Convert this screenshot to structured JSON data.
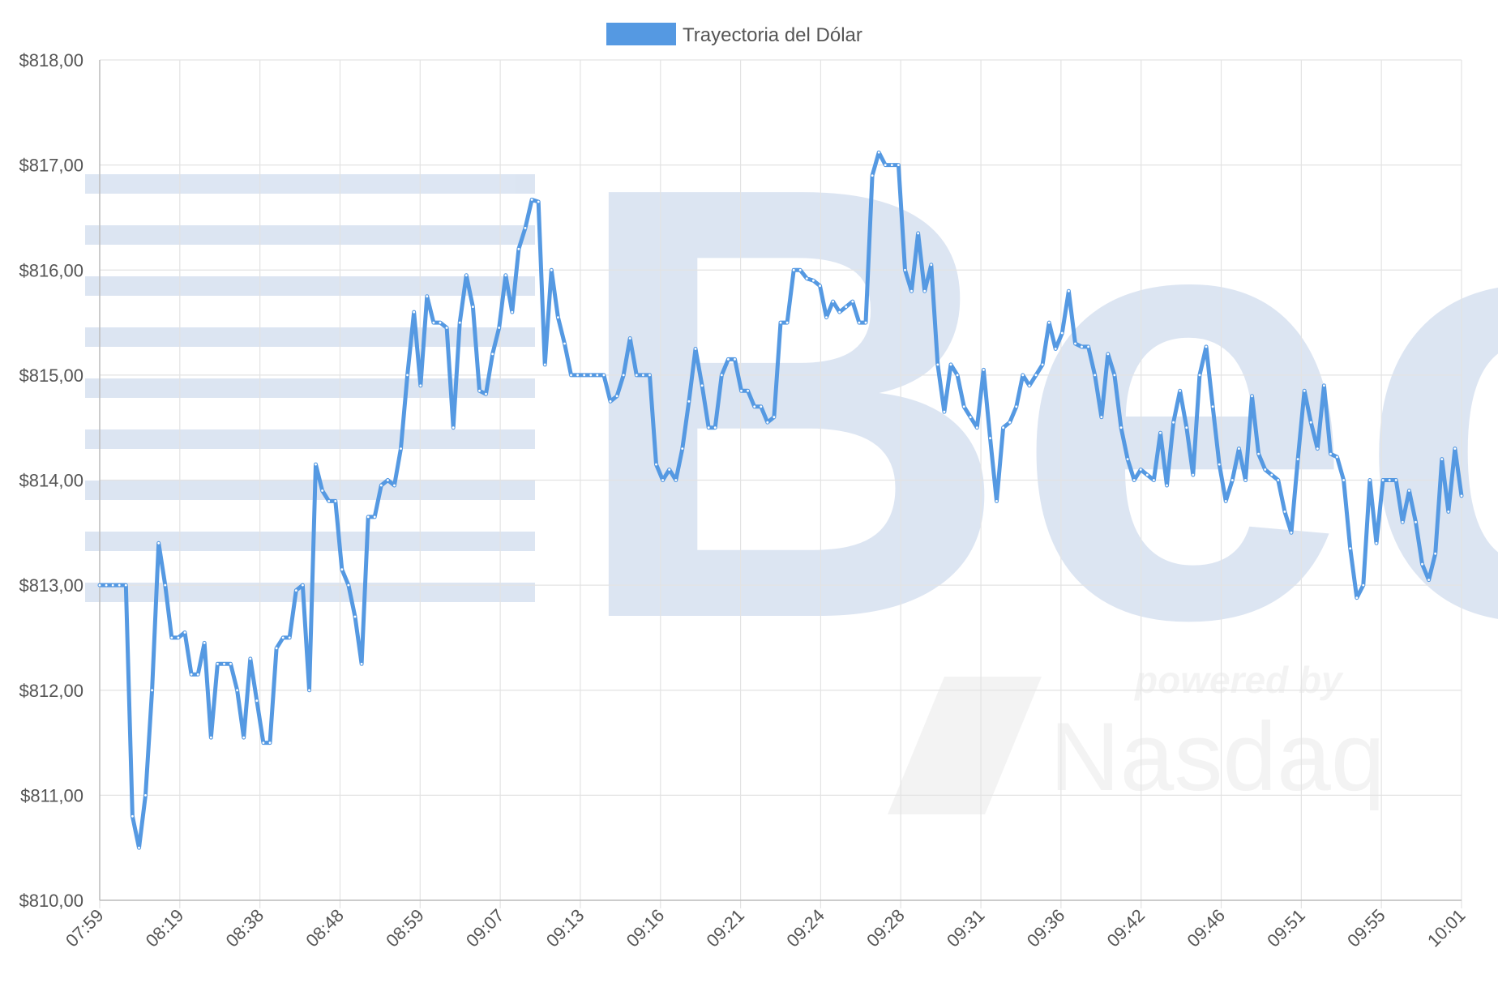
{
  "legend": {
    "label": "Trayectoria del Dólar",
    "color": "#5599e2"
  },
  "watermark": {
    "brand_text": "Bec",
    "powered_text": "powered by",
    "partner_text": "Nasdaq"
  },
  "chart_data": {
    "type": "line",
    "title": "",
    "xlabel": "",
    "ylabel": "",
    "ylim": [
      810,
      818
    ],
    "y_ticks": [
      818,
      817,
      816,
      815,
      814,
      813,
      812,
      811,
      810
    ],
    "y_tick_labels": [
      "$818,00",
      "$817,00",
      "$816,00",
      "$815,00",
      "$814,00",
      "$813,00",
      "$812,00",
      "$811,00",
      "$810,00"
    ],
    "x_tick_labels": [
      "07:59",
      "08:19",
      "08:38",
      "08:48",
      "08:59",
      "09:07",
      "09:13",
      "09:16",
      "09:21",
      "09:24",
      "09:28",
      "09:31",
      "09:36",
      "09:42",
      "09:46",
      "09:51",
      "09:55",
      "10:01"
    ],
    "grid": true,
    "legend_position": "top-center",
    "series": [
      {
        "name": "Trayectoria del Dólar",
        "color": "#5599e2",
        "values": [
          813.0,
          813.0,
          813.0,
          813.0,
          813.0,
          810.8,
          810.5,
          811.0,
          812.0,
          813.4,
          813.0,
          812.5,
          812.5,
          812.55,
          812.15,
          812.15,
          812.45,
          811.55,
          812.25,
          812.25,
          812.25,
          812.0,
          811.55,
          812.3,
          811.9,
          811.5,
          811.5,
          812.4,
          812.5,
          812.5,
          812.95,
          813.0,
          812.0,
          814.15,
          813.9,
          813.8,
          813.8,
          813.15,
          813.0,
          812.7,
          812.25,
          813.65,
          813.65,
          813.95,
          814.0,
          813.95,
          814.3,
          815.0,
          815.6,
          814.9,
          815.75,
          815.5,
          815.5,
          815.45,
          814.5,
          815.5,
          815.95,
          815.65,
          814.85,
          814.82,
          815.2,
          815.45,
          815.95,
          815.6,
          816.2,
          816.4,
          816.67,
          816.65,
          815.1,
          816.0,
          815.55,
          815.3,
          815.0,
          815.0,
          815.0,
          815.0,
          815.0,
          815.0,
          814.75,
          814.8,
          815.0,
          815.35,
          815.0,
          815.0,
          815.0,
          814.15,
          814.0,
          814.1,
          814.0,
          814.3,
          814.75,
          815.25,
          814.9,
          814.5,
          814.5,
          815.0,
          815.15,
          815.15,
          814.85,
          814.85,
          814.7,
          814.7,
          814.55,
          814.6,
          815.5,
          815.5,
          816.0,
          816.0,
          815.92,
          815.9,
          815.85,
          815.55,
          815.7,
          815.6,
          815.65,
          815.7,
          815.5,
          815.5,
          816.9,
          817.12,
          817.0,
          817.0,
          817.0,
          816.0,
          815.8,
          816.35,
          815.8,
          816.05,
          815.1,
          814.65,
          815.1,
          815.0,
          814.7,
          814.6,
          814.5,
          815.05,
          814.4,
          813.8,
          814.5,
          814.55,
          814.7,
          815.0,
          814.9,
          815.0,
          815.1,
          815.5,
          815.25,
          815.4,
          815.8,
          815.3,
          815.27,
          815.27,
          815.0,
          814.6,
          815.2,
          815.0,
          814.5,
          814.2,
          814.0,
          814.1,
          814.05,
          814.0,
          814.45,
          813.95,
          814.55,
          814.85,
          814.5,
          814.05,
          815.0,
          815.27,
          814.7,
          814.15,
          813.8,
          814.0,
          814.3,
          814.0,
          814.8,
          814.25,
          814.1,
          814.05,
          814.0,
          813.7,
          813.5,
          814.2,
          814.85,
          814.55,
          814.3,
          814.9,
          814.25,
          814.22,
          814.0,
          813.35,
          812.88,
          813.0,
          814.0,
          813.4,
          814.0,
          814.0,
          814.0,
          813.6,
          813.9,
          813.6,
          813.2,
          813.05,
          813.3,
          814.2,
          813.7,
          814.3,
          813.85
        ]
      }
    ]
  }
}
